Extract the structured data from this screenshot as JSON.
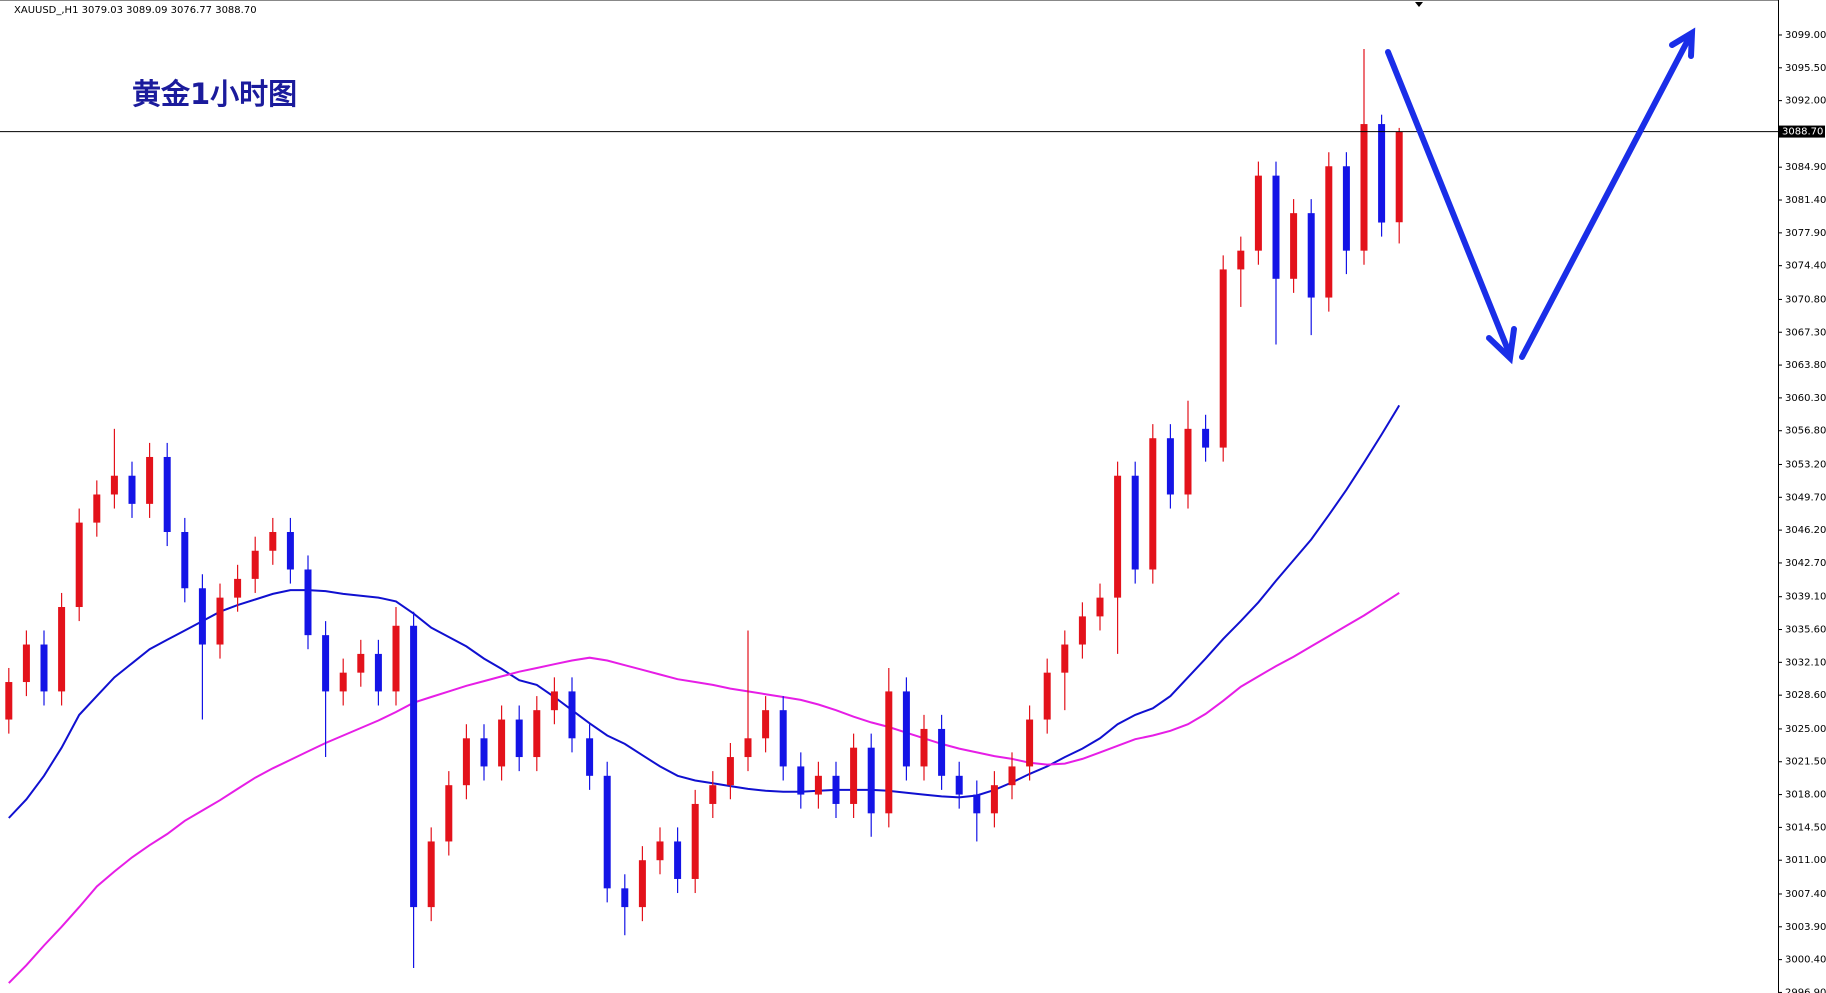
{
  "chart_data": {
    "type": "candlestick",
    "header": "XAUUSD_,H1  3079.03 3089.09 3076.77 3088.70",
    "title": "黄金1小时图",
    "up_color": "#e3121b",
    "down_color": "#1414e6",
    "open": [
      3026,
      3030,
      3034,
      3029,
      3038,
      3047,
      3050,
      3052,
      3049,
      3054,
      3046,
      3040,
      3034,
      3039,
      3041,
      3044,
      3046,
      3042,
      3035,
      3029,
      3031,
      3033,
      3029,
      3036,
      3006,
      3013,
      3019,
      3024,
      3021,
      3026,
      3022,
      3027,
      3029,
      3024,
      3020,
      3008,
      3006,
      3011,
      3013,
      3009,
      3017,
      3019,
      3022,
      3024,
      3027,
      3021,
      3018,
      3020,
      3017,
      3023,
      3016,
      3029,
      3021,
      3025,
      3020,
      3018,
      3016,
      3019,
      3021,
      3026,
      3031,
      3034,
      3037,
      3039,
      3052,
      3042,
      3056,
      3050,
      3057,
      3055,
      3074,
      3076,
      3084,
      3073,
      3080,
      3071,
      3085,
      3076,
      3089.5,
      3079.03
    ],
    "high": [
      3031.5,
      3035.5,
      3035.5,
      3039.5,
      3048.5,
      3051.5,
      3057,
      3053.5,
      3055.5,
      3055.5,
      3047.5,
      3041.5,
      3040.5,
      3042.5,
      3045.5,
      3047.5,
      3047.5,
      3043.5,
      3036.5,
      3032.5,
      3034.5,
      3034.5,
      3038,
      3037.5,
      3014.5,
      3020.5,
      3025.5,
      3025.5,
      3027.5,
      3027.5,
      3028.5,
      3030.5,
      3030.5,
      3025.5,
      3021.5,
      3009.5,
      3012.5,
      3014.5,
      3014.5,
      3018.5,
      3020.5,
      3023.5,
      3035.5,
      3028.5,
      3028.5,
      3022.5,
      3021.5,
      3021.5,
      3024.5,
      3024.5,
      3031.5,
      3030.5,
      3026.5,
      3026.5,
      3021.5,
      3019.5,
      3020.5,
      3022.5,
      3027.5,
      3032.5,
      3035.5,
      3038.5,
      3040.5,
      3053.5,
      3053.5,
      3057.5,
      3057.5,
      3060,
      3058.5,
      3075.5,
      3077.5,
      3085.5,
      3085.5,
      3081.5,
      3081.5,
      3086.5,
      3086.5,
      3097.5,
      3090.5,
      3089.09
    ],
    "low": [
      3024.5,
      3028.5,
      3027.5,
      3027.5,
      3036.5,
      3045.5,
      3048.5,
      3047.5,
      3047.5,
      3044.5,
      3038.5,
      3026,
      3032.5,
      3037.5,
      3039.5,
      3042.5,
      3040.5,
      3033.5,
      3022,
      3027.5,
      3029.5,
      3027.5,
      3027.5,
      2999.5,
      3004.5,
      3011.5,
      3017.5,
      3019.5,
      3019.5,
      3020.5,
      3020.5,
      3025.5,
      3022.5,
      3018.5,
      3006.5,
      3003,
      3004.5,
      3009.5,
      3007.5,
      3007.5,
      3015.5,
      3017.5,
      3020.5,
      3022.5,
      3019.5,
      3016.5,
      3016.5,
      3015.5,
      3015.5,
      3013.5,
      3014.5,
      3019.5,
      3019.5,
      3018.5,
      3016.5,
      3013,
      3014.5,
      3017.5,
      3019.5,
      3024.5,
      3027,
      3032.5,
      3035.5,
      3033,
      3040.5,
      3040.5,
      3048.5,
      3048.5,
      3053.5,
      3053.5,
      3070,
      3074.5,
      3066,
      3071.5,
      3067,
      3069.5,
      3073.5,
      3074.5,
      3077.5,
      3076.77
    ],
    "close": [
      3030,
      3034,
      3029,
      3038,
      3047,
      3050,
      3052,
      3049,
      3054,
      3046,
      3040,
      3034,
      3039,
      3041,
      3044,
      3046,
      3042,
      3035,
      3029,
      3031,
      3033,
      3029,
      3036,
      3006,
      3013,
      3019,
      3024,
      3021,
      3026,
      3022,
      3027,
      3029,
      3024,
      3020,
      3008,
      3006,
      3011,
      3013,
      3009,
      3017,
      3019,
      3022,
      3024,
      3027,
      3021,
      3018,
      3020,
      3017,
      3023,
      3016,
      3029,
      3021,
      3025,
      3020,
      3018,
      3016,
      3019,
      3021,
      3026,
      3031,
      3034,
      3037,
      3039,
      3052,
      3042,
      3056,
      3050,
      3057,
      3055,
      3074,
      3076,
      3084,
      3073,
      3080,
      3071,
      3085,
      3076,
      3089.5,
      3079,
      3088.7
    ],
    "lines": [
      {
        "color": "#1010d0",
        "values": [
          3015.5,
          3017.5,
          3020,
          3023,
          3026.5,
          3028.5,
          3030.5,
          3032,
          3033.5,
          3034.5,
          3035.5,
          3036.5,
          3037.5,
          3038.2,
          3038.8,
          3039.4,
          3039.8,
          3039.8,
          3039.7,
          3039.4,
          3039.2,
          3039,
          3038.6,
          3037.3,
          3035.8,
          3034.8,
          3033.8,
          3032.5,
          3031.4,
          3030.2,
          3029.7,
          3028.4,
          3027,
          3025.6,
          3024.3,
          3023.4,
          3022.2,
          3021,
          3020,
          3019.5,
          3019.2,
          3018.9,
          3018.6,
          3018.4,
          3018.3,
          3018.3,
          3018.4,
          3018.5,
          3018.5,
          3018.5,
          3018.4,
          3018.2,
          3018,
          3017.8,
          3017.7,
          3017.9,
          3018.5,
          3019.3,
          3020.2,
          3021,
          3022,
          3022.9,
          3024,
          3025.5,
          3026.5,
          3027.2,
          3028.5,
          3030.5,
          3032.5,
          3034.6,
          3036.5,
          3038.5,
          3040.8,
          3043,
          3045.2,
          3047.8,
          3050.5,
          3053.4,
          3056.4,
          3059.5
        ]
      },
      {
        "color": "#e61ee6",
        "values": [
          2997.9,
          2999.8,
          3001.9,
          3003.9,
          3006,
          3008.2,
          3009.8,
          3011.3,
          3012.6,
          3013.8,
          3015.2,
          3016.3,
          3017.4,
          3018.6,
          3019.8,
          3020.8,
          3021.7,
          3022.6,
          3023.5,
          3024.3,
          3025.1,
          3025.9,
          3026.8,
          3027.8,
          3028.4,
          3029,
          3029.6,
          3030.1,
          3030.6,
          3031.1,
          3031.5,
          3031.9,
          3032.3,
          3032.6,
          3032.3,
          3031.8,
          3031.3,
          3030.8,
          3030.3,
          3030,
          3029.7,
          3029.3,
          3029,
          3028.7,
          3028.4,
          3028.1,
          3027.6,
          3027,
          3026.3,
          3025.7,
          3025.2,
          3024.6,
          3024,
          3023.4,
          3022.9,
          3022.5,
          3022.1,
          3021.8,
          3021.4,
          3021.2,
          3021.3,
          3021.8,
          3022.5,
          3023.2,
          3023.9,
          3024.3,
          3024.8,
          3025.5,
          3026.6,
          3028,
          3029.5,
          3030.6,
          3031.7,
          3032.7,
          3033.8,
          3034.9,
          3036,
          3037.1,
          3038.3,
          3039.5
        ]
      }
    ],
    "last_price": {
      "value": 3088.7,
      "label": "3088.70"
    },
    "ylim": [
      2996.84,
      3102.73
    ],
    "yticks": [
      {
        "value": 3099,
        "label": "3099.00"
      },
      {
        "value": 3095.5,
        "label": "3095.50"
      },
      {
        "value": 3092,
        "label": "3092.00"
      },
      {
        "value": 3084.9,
        "label": "3084.90"
      },
      {
        "value": 3081.4,
        "label": "3081.40"
      },
      {
        "value": 3077.9,
        "label": "3077.90"
      },
      {
        "value": 3074.4,
        "label": "3074.40"
      },
      {
        "value": 3070.8,
        "label": "3070.80"
      },
      {
        "value": 3067.3,
        "label": "3067.30"
      },
      {
        "value": 3063.8,
        "label": "3063.80"
      },
      {
        "value": 3060.3,
        "label": "3060.30"
      },
      {
        "value": 3056.8,
        "label": "3056.80"
      },
      {
        "value": 3053.2,
        "label": "3053.20"
      },
      {
        "value": 3049.7,
        "label": "3049.70"
      },
      {
        "value": 3046.2,
        "label": "3046.20"
      },
      {
        "value": 3042.7,
        "label": "3042.70"
      },
      {
        "value": 3039.1,
        "label": "3039.10"
      },
      {
        "value": 3035.6,
        "label": "3035.60"
      },
      {
        "value": 3032.1,
        "label": "3032.10"
      },
      {
        "value": 3028.6,
        "label": "3028.60"
      },
      {
        "value": 3025,
        "label": "3025.00"
      },
      {
        "value": 3021.5,
        "label": "3021.50"
      },
      {
        "value": 3018,
        "label": "3018.00"
      },
      {
        "value": 3014.5,
        "label": "3014.50"
      },
      {
        "value": 3011,
        "label": "3011.00"
      },
      {
        "value": 3007.4,
        "label": "3007.40"
      },
      {
        "value": 3003.9,
        "label": "3003.90"
      },
      {
        "value": 3000.4,
        "label": "3000.40"
      },
      {
        "value": 2996.9,
        "label": "2996.90"
      }
    ]
  }
}
